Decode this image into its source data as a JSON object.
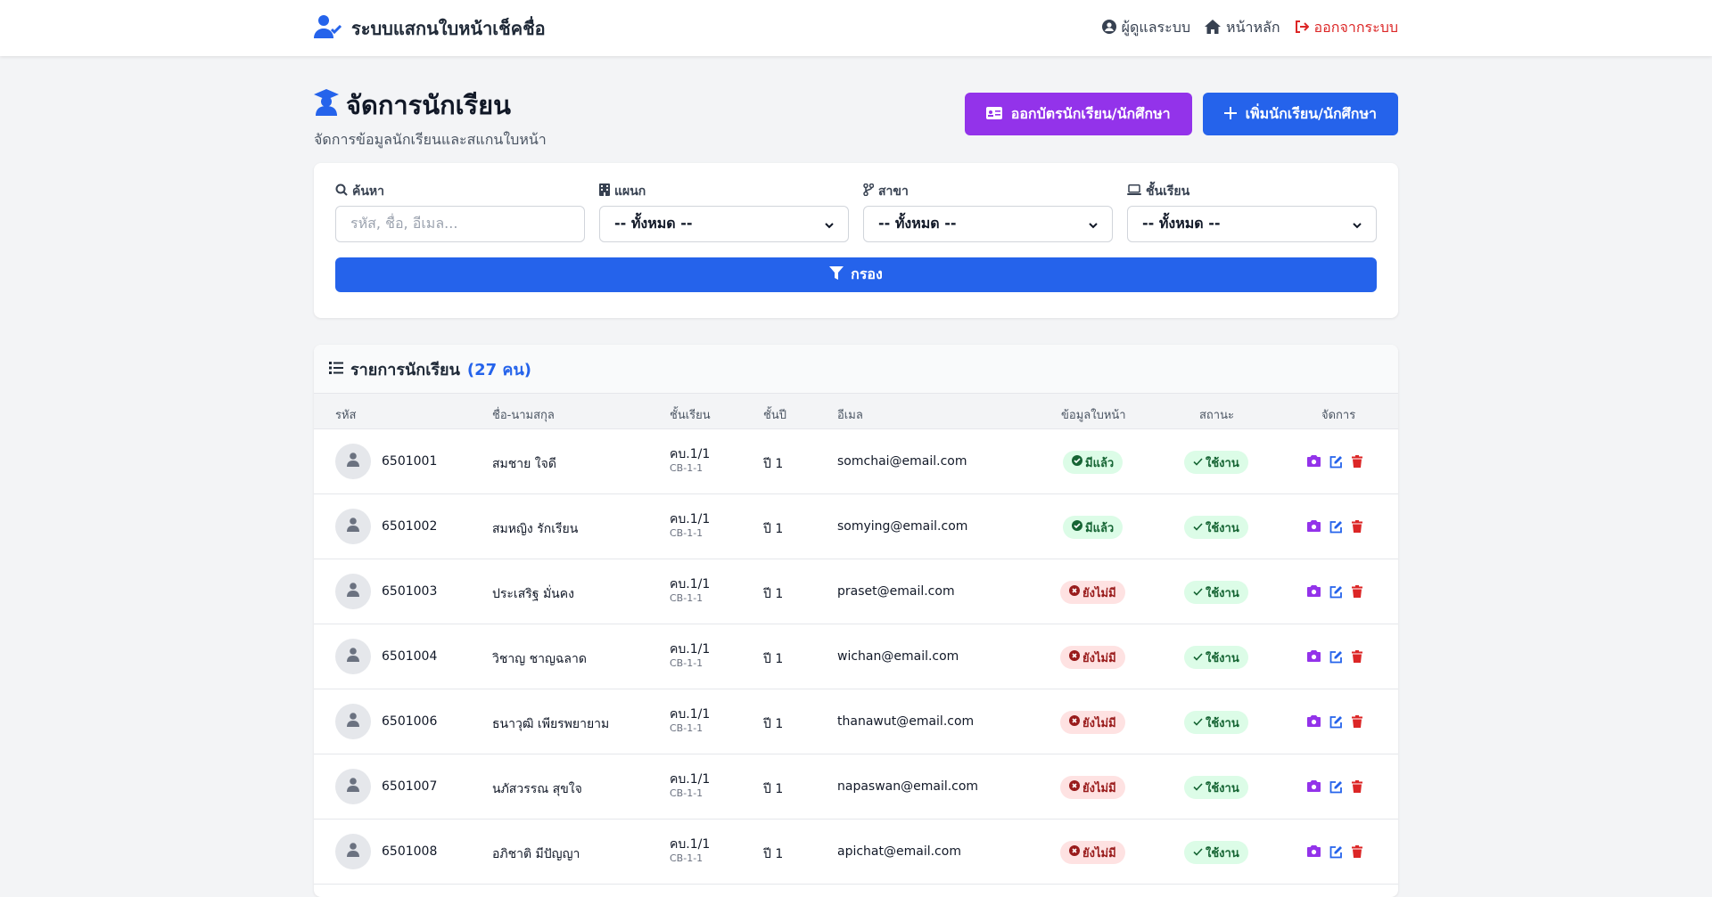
{
  "app": {
    "title": "ระบบแสกนใบหน้าเช็คชื่อ",
    "nav": {
      "admin": "ผู้ดูแลระบบ",
      "home": "หน้าหลัก",
      "logout": "ออกจากระบบ"
    }
  },
  "page": {
    "title": "จัดการนักเรียน",
    "subtitle": "จัดการข้อมูลนักเรียนและสแกนใบหน้า",
    "btn_card": "ออกบัตรนักเรียน/นักศึกษา",
    "btn_add": "เพิ่มนักเรียน/นักศึกษา"
  },
  "filters": {
    "search_label": "ค้นหา",
    "search_placeholder": "รหัส, ชื่อ, อีเมล...",
    "dept_label": "แผนก",
    "major_label": "สาขา",
    "class_label": "ชั้นเรียน",
    "all_option": "-- ทั้งหมด --",
    "filter_button": "กรอง"
  },
  "list": {
    "title": "รายการนักเรียน",
    "count": "(27 คน)",
    "columns": {
      "code": "รหัส",
      "name": "ชื่อ-นามสกุล",
      "class": "ชั้นเรียน",
      "year": "ชั้นปี",
      "email": "อีเมล",
      "face": "ข้อมูลใบหน้า",
      "status": "สถานะ",
      "manage": "จัดการ"
    },
    "rows": [
      {
        "code": "6501001",
        "name": "สมชาย ใจดี",
        "class": "คบ.1/1",
        "class_code": "CB-1-1",
        "year": "ปี 1",
        "email": "somchai@email.com",
        "face": "มีแล้ว",
        "face_ok": true,
        "status": "ใช้งาน"
      },
      {
        "code": "6501002",
        "name": "สมหญิง รักเรียน",
        "class": "คบ.1/1",
        "class_code": "CB-1-1",
        "year": "ปี 1",
        "email": "somying@email.com",
        "face": "มีแล้ว",
        "face_ok": true,
        "status": "ใช้งาน"
      },
      {
        "code": "6501003",
        "name": "ประเสริฐ มั่นคง",
        "class": "คบ.1/1",
        "class_code": "CB-1-1",
        "year": "ปี 1",
        "email": "praset@email.com",
        "face": "ยังไม่มี",
        "face_ok": false,
        "status": "ใช้งาน"
      },
      {
        "code": "6501004",
        "name": "วิชาญ ชาญฉลาด",
        "class": "คบ.1/1",
        "class_code": "CB-1-1",
        "year": "ปี 1",
        "email": "wichan@email.com",
        "face": "ยังไม่มี",
        "face_ok": false,
        "status": "ใช้งาน"
      },
      {
        "code": "6501006",
        "name": "ธนาวุฒิ เพียรพยายาม",
        "class": "คบ.1/1",
        "class_code": "CB-1-1",
        "year": "ปี 1",
        "email": "thanawut@email.com",
        "face": "ยังไม่มี",
        "face_ok": false,
        "status": "ใช้งาน"
      },
      {
        "code": "6501007",
        "name": "นภัสวรรณ สุขใจ",
        "class": "คบ.1/1",
        "class_code": "CB-1-1",
        "year": "ปี 1",
        "email": "napaswan@email.com",
        "face": "ยังไม่มี",
        "face_ok": false,
        "status": "ใช้งาน"
      },
      {
        "code": "6501008",
        "name": "อภิชาติ มีปัญญา",
        "class": "คบ.1/1",
        "class_code": "CB-1-1",
        "year": "ปี 1",
        "email": "apichat@email.com",
        "face": "ยังไม่มี",
        "face_ok": false,
        "status": "ใช้งาน"
      }
    ]
  },
  "colors": {
    "primary": "#2563eb",
    "purple": "#9333ea",
    "danger": "#dc2626",
    "success": "#166534"
  },
  "icons": [
    "user-check-icon",
    "user-circle-icon",
    "home-icon",
    "sign-out-icon",
    "graduate-icon",
    "id-card-icon",
    "plus-icon",
    "search-icon",
    "building-icon",
    "branch-icon",
    "laptop-icon",
    "filter-icon",
    "list-icon",
    "user-icon",
    "check-circle-icon",
    "x-circle-icon",
    "check-icon",
    "camera-icon",
    "edit-icon",
    "trash-icon"
  ]
}
